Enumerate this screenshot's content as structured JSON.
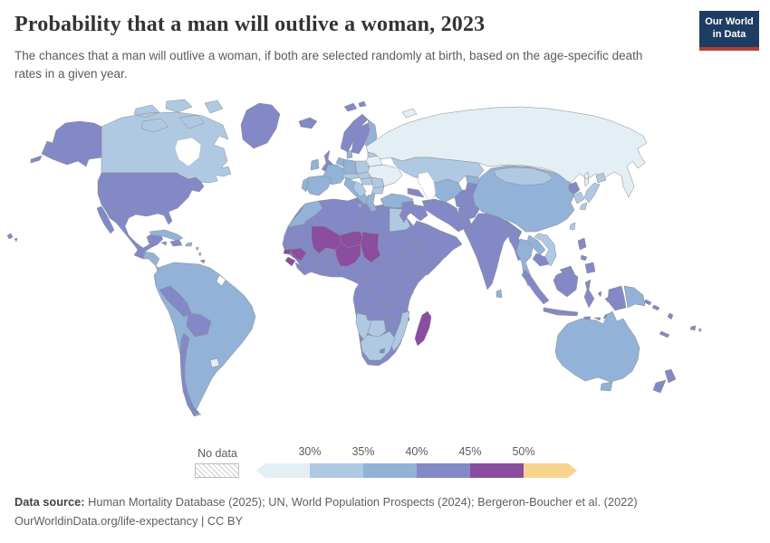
{
  "header": {
    "title": "Probability that a man will outlive a woman, 2023",
    "subtitle": "The chances that a man will outlive a woman, if both are selected randomly at birth, based on the age-specific death rates in a given year.",
    "logo_line1": "Our World",
    "logo_line2": "in Data",
    "logo_bg": "#1d3d63",
    "logo_accent": "#b53e35"
  },
  "legend": {
    "no_data_label": "No data",
    "ticks": [
      "30%",
      "35%",
      "40%",
      "45%",
      "50%"
    ]
  },
  "footer": {
    "source_label": "Data source:",
    "source_text": " Human Mortality Database (2025); UN, World Population Prospects (2024); Bergeron-Boucher et al. (2022)",
    "license_text": "OurWorldinData.org/life-expectancy | CC BY"
  },
  "chart_data": {
    "type": "choropleth_map",
    "title": "Probability that a man will outlive a woman, 2023",
    "unit": "%",
    "legend_position": "bottom",
    "bins": [
      {
        "label": "No data",
        "color": "#ffffff"
      },
      {
        "label": "<30%",
        "color": "#e3eef5"
      },
      {
        "label": "30-35%",
        "color": "#b0c9e3"
      },
      {
        "label": "35-40%",
        "color": "#92b2d8"
      },
      {
        "label": "40-45%",
        "color": "#8389c6"
      },
      {
        "label": "45-50%",
        "color": "#8a4d9f"
      },
      {
        "label": ">50%",
        "color": "#f8d390"
      }
    ],
    "regions": [
      {
        "id": "canada",
        "name": "Canada",
        "bin": 2
      },
      {
        "id": "greenland",
        "name": "Greenland",
        "bin": 4
      },
      {
        "id": "united-states",
        "name": "United States (incl. Alaska, Hawaii)",
        "bin": 4
      },
      {
        "id": "mexico",
        "name": "Mexico",
        "bin": 4
      },
      {
        "id": "guatemala",
        "name": "Guatemala",
        "bin": 4
      },
      {
        "id": "honduras-nicaragua",
        "name": "Honduras / Nicaragua",
        "bin": 3
      },
      {
        "id": "costa-rica-panama",
        "name": "Costa Rica / Panama",
        "bin": 3
      },
      {
        "id": "cuba",
        "name": "Cuba",
        "bin": 3
      },
      {
        "id": "hispaniola",
        "name": "Haiti / Dominican Republic",
        "bin": 4
      },
      {
        "id": "jamaica",
        "name": "Jamaica",
        "bin": 4
      },
      {
        "id": "puerto-rico",
        "name": "Puerto Rico",
        "bin": 3
      },
      {
        "id": "lesser-antilles",
        "name": "Lesser Antilles",
        "bin": 3
      },
      {
        "id": "trinidad",
        "name": "Trinidad and Tobago",
        "bin": 4
      },
      {
        "id": "south-america-majority",
        "name": "Brazil, Argentina, Colombia, Venezuela, Ecuador, Paraguay, Guyana, Suriname",
        "bin": 3
      },
      {
        "id": "peru",
        "name": "Peru",
        "bin": 4
      },
      {
        "id": "bolivia",
        "name": "Bolivia",
        "bin": 4
      },
      {
        "id": "chile",
        "name": "Chile",
        "bin": 4
      },
      {
        "id": "uruguay",
        "name": "Uruguay",
        "bin": 1
      },
      {
        "id": "french-guiana",
        "name": "French Guiana",
        "bin": 0
      },
      {
        "id": "africa-majority",
        "name": "Most of Central & East Africa",
        "bin": 4
      },
      {
        "id": "morocco-w-sahara",
        "name": "Morocco / Western Sahara",
        "bin": 3
      },
      {
        "id": "algeria",
        "name": "Algeria",
        "bin": 4
      },
      {
        "id": "tunisia",
        "name": "Tunisia",
        "bin": 4
      },
      {
        "id": "libya",
        "name": "Libya",
        "bin": 4
      },
      {
        "id": "egypt",
        "name": "Egypt",
        "bin": 2
      },
      {
        "id": "mauritania",
        "name": "Mauritania",
        "bin": 4
      },
      {
        "id": "mali",
        "name": "Mali",
        "bin": 5
      },
      {
        "id": "niger",
        "name": "Niger",
        "bin": 5
      },
      {
        "id": "chad",
        "name": "Chad",
        "bin": 5
      },
      {
        "id": "sudan",
        "name": "Sudan",
        "bin": 4
      },
      {
        "id": "eritrea-djibouti",
        "name": "Eritrea / Djibouti",
        "bin": 4
      },
      {
        "id": "senegal",
        "name": "Senegal / Gambia",
        "bin": 4
      },
      {
        "id": "guinea-bissau",
        "name": "Guinea-Bissau",
        "bin": 5
      },
      {
        "id": "guinea",
        "name": "Guinea",
        "bin": 5
      },
      {
        "id": "sierra-leone",
        "name": "Sierra Leone",
        "bin": 5
      },
      {
        "id": "liberia",
        "name": "Liberia",
        "bin": 4
      },
      {
        "id": "ivory-coast",
        "name": "Côte d'Ivoire",
        "bin": 4
      },
      {
        "id": "ghana",
        "name": "Ghana",
        "bin": 4
      },
      {
        "id": "togo-benin",
        "name": "Togo / Benin",
        "bin": 4
      },
      {
        "id": "burkina-faso",
        "name": "Burkina Faso",
        "bin": 4
      },
      {
        "id": "nigeria",
        "name": "Nigeria",
        "bin": 5
      },
      {
        "id": "cameroon",
        "name": "Cameroon",
        "bin": 4
      },
      {
        "id": "central-african-republic",
        "name": "Central African Republic",
        "bin": 4
      },
      {
        "id": "ethiopia",
        "name": "Ethiopia",
        "bin": 4
      },
      {
        "id": "somalia",
        "name": "Somalia",
        "bin": 4
      },
      {
        "id": "kenya",
        "name": "Kenya",
        "bin": 4
      },
      {
        "id": "uganda",
        "name": "Uganda",
        "bin": 4
      },
      {
        "id": "drc",
        "name": "Democratic Republic of Congo",
        "bin": 4
      },
      {
        "id": "tanzania",
        "name": "Tanzania",
        "bin": 4
      },
      {
        "id": "gabon-congo",
        "name": "Gabon / Congo",
        "bin": 4
      },
      {
        "id": "angola",
        "name": "Angola",
        "bin": 4
      },
      {
        "id": "zambia",
        "name": "Zambia",
        "bin": 4
      },
      {
        "id": "malawi",
        "name": "Malawi",
        "bin": 4
      },
      {
        "id": "mozambique",
        "name": "Mozambique",
        "bin": 2
      },
      {
        "id": "zimbabwe",
        "name": "Zimbabwe",
        "bin": 4
      },
      {
        "id": "botswana",
        "name": "Botswana",
        "bin": 2
      },
      {
        "id": "namibia",
        "name": "Namibia",
        "bin": 2
      },
      {
        "id": "south-africa",
        "name": "South Africa",
        "bin": 2
      },
      {
        "id": "lesotho",
        "name": "Lesotho",
        "bin": 4
      },
      {
        "id": "madagascar",
        "name": "Madagascar",
        "bin": 5
      },
      {
        "id": "iceland",
        "name": "Iceland",
        "bin": 4
      },
      {
        "id": "svalbard",
        "name": "Svalbard (Norway)",
        "bin": 4
      },
      {
        "id": "united-kingdom",
        "name": "United Kingdom",
        "bin": 4
      },
      {
        "id": "ireland",
        "name": "Ireland",
        "bin": 3
      },
      {
        "id": "norway",
        "name": "Norway",
        "bin": 4
      },
      {
        "id": "sweden",
        "name": "Sweden",
        "bin": 4
      },
      {
        "id": "finland",
        "name": "Finland",
        "bin": 3
      },
      {
        "id": "denmark",
        "name": "Denmark",
        "bin": 3
      },
      {
        "id": "baltics",
        "name": "Estonia / Latvia / Lithuania",
        "bin": 2
      },
      {
        "id": "poland",
        "name": "Poland",
        "bin": 2
      },
      {
        "id": "germany",
        "name": "Germany",
        "bin": 3
      },
      {
        "id": "benelux",
        "name": "Netherlands / Belgium",
        "bin": 3
      },
      {
        "id": "france",
        "name": "France",
        "bin": 3
      },
      {
        "id": "spain",
        "name": "Spain",
        "bin": 3
      },
      {
        "id": "portugal",
        "name": "Portugal",
        "bin": 3
      },
      {
        "id": "italy",
        "name": "Italy",
        "bin": 3
      },
      {
        "id": "alpine",
        "name": "Switzerland / Austria",
        "bin": 2
      },
      {
        "id": "czech-slovakia",
        "name": "Czechia / Slovakia",
        "bin": 2
      },
      {
        "id": "hungary",
        "name": "Hungary",
        "bin": 2
      },
      {
        "id": "balkans",
        "name": "Western Balkans",
        "bin": 2
      },
      {
        "id": "romania",
        "name": "Romania",
        "bin": 2
      },
      {
        "id": "bulgaria",
        "name": "Bulgaria",
        "bin": 2
      },
      {
        "id": "greece",
        "name": "Greece",
        "bin": 3
      },
      {
        "id": "ukraine",
        "name": "Ukraine",
        "bin": 1
      },
      {
        "id": "belarus",
        "name": "Belarus",
        "bin": 1
      },
      {
        "id": "russia",
        "name": "Russia",
        "bin": 1
      },
      {
        "id": "kazakhstan",
        "name": "Kazakhstan",
        "bin": 2
      },
      {
        "id": "uzbek-turkmen",
        "name": "Uzbekistan / Turkmenistan",
        "bin": 3
      },
      {
        "id": "kyrgyzstan",
        "name": "Kyrgyzstan",
        "bin": 3
      },
      {
        "id": "tajikistan",
        "name": "Tajikistan",
        "bin": 4
      },
      {
        "id": "afghanistan",
        "name": "Afghanistan",
        "bin": 4
      },
      {
        "id": "pakistan",
        "name": "Pakistan",
        "bin": 4
      },
      {
        "id": "turkey",
        "name": "Turkey",
        "bin": 3
      },
      {
        "id": "caucasus",
        "name": "Georgia / Armenia / Azerbaijan",
        "bin": 4
      },
      {
        "id": "syria-levant",
        "name": "Syria / Levant",
        "bin": 4
      },
      {
        "id": "jordan-israel",
        "name": "Jordan / Israel",
        "bin": 4
      },
      {
        "id": "iraq",
        "name": "Iraq",
        "bin": 4
      },
      {
        "id": "iran",
        "name": "Iran",
        "bin": 4
      },
      {
        "id": "saudi-arabian-peninsula",
        "name": "Saudi Arabia / Yemen / Oman / Gulf states",
        "bin": 4
      },
      {
        "id": "india",
        "name": "India",
        "bin": 4
      },
      {
        "id": "bangladesh",
        "name": "Bangladesh",
        "bin": 4
      },
      {
        "id": "sri-lanka",
        "name": "Sri Lanka",
        "bin": 3
      },
      {
        "id": "china",
        "name": "China",
        "bin": 3
      },
      {
        "id": "mongolia",
        "name": "Mongolia",
        "bin": 2
      },
      {
        "id": "north-korea",
        "name": "North Korea",
        "bin": 4
      },
      {
        "id": "south-korea",
        "name": "South Korea",
        "bin": 2
      },
      {
        "id": "japan",
        "name": "Japan",
        "bin": 2
      },
      {
        "id": "taiwan",
        "name": "Taiwan",
        "bin": 2
      },
      {
        "id": "myanmar",
        "name": "Myanmar",
        "bin": 4
      },
      {
        "id": "thailand",
        "name": "Thailand",
        "bin": 3
      },
      {
        "id": "laos",
        "name": "Laos",
        "bin": 3
      },
      {
        "id": "vietnam",
        "name": "Vietnam",
        "bin": 2
      },
      {
        "id": "cambodia",
        "name": "Cambodia",
        "bin": 4
      },
      {
        "id": "malaysia",
        "name": "Malaysia",
        "bin": 4
      },
      {
        "id": "indonesia",
        "name": "Indonesia (incl. western New Guinea)",
        "bin": 4
      },
      {
        "id": "philippines",
        "name": "Philippines",
        "bin": 4
      },
      {
        "id": "papua-new-guinea",
        "name": "Papua New Guinea",
        "bin": 3
      },
      {
        "id": "australia",
        "name": "Australia",
        "bin": 3
      },
      {
        "id": "new-zealand",
        "name": "New Zealand",
        "bin": 4
      },
      {
        "id": "new-caledonia",
        "name": "New Caledonia",
        "bin": 4
      },
      {
        "id": "fiji",
        "name": "Fiji",
        "bin": 4
      },
      {
        "id": "solomon-islands",
        "name": "Solomon Islands",
        "bin": 4
      },
      {
        "id": "vanuatu",
        "name": "Vanuatu",
        "bin": 4
      }
    ]
  }
}
